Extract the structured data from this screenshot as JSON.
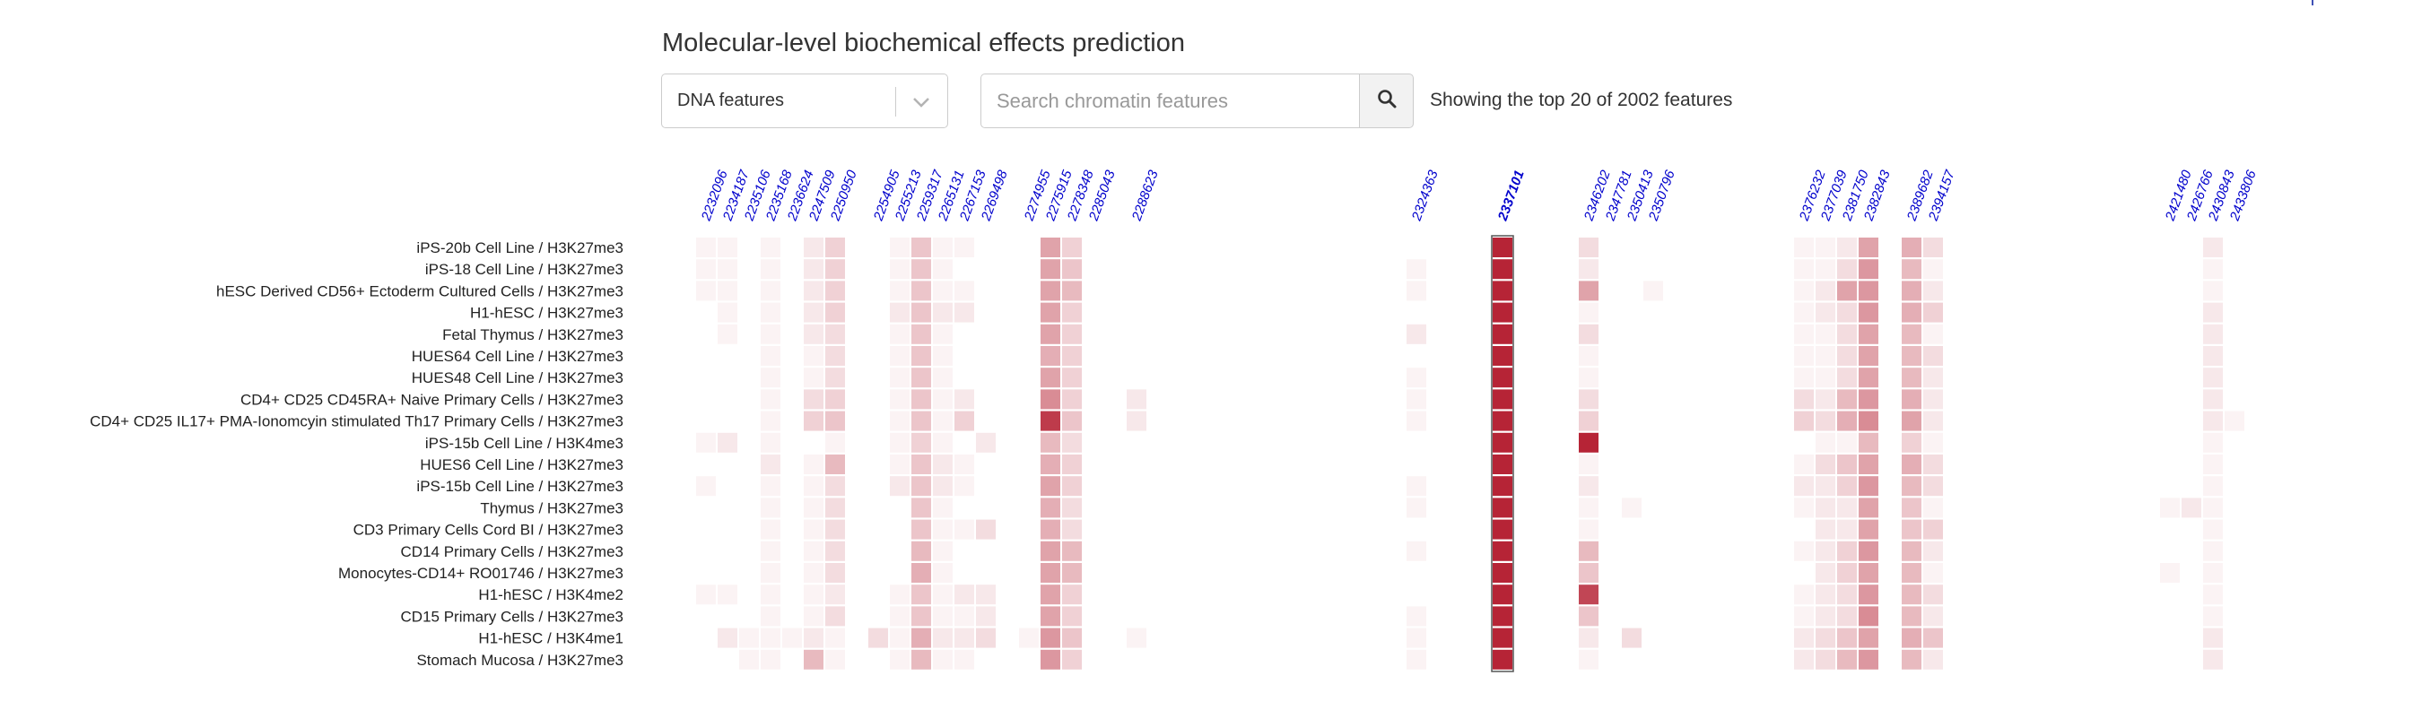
{
  "header": {
    "title": "Molecular-level biochemical effects prediction",
    "feature_select": {
      "selected": "DNA features"
    },
    "search": {
      "placeholder": "Search chromatin features"
    },
    "showing_text": "Showing the top 20 of 2002 features"
  },
  "colors": {
    "heat_low": "#ffffff",
    "heat_high": "#b2182b",
    "column_label": "#0000cc",
    "grid_line": "#e6e6e6"
  },
  "icons": {
    "dropdown": "chevron-down-icon",
    "search": "search-icon"
  },
  "chart_data": {
    "type": "heatmap",
    "title": "",
    "x_labels": [
      "2232096",
      "2234187",
      "2235106",
      "2235168",
      "2236624",
      "2247509",
      "2250950",
      "2254905",
      "2255213",
      "2259317",
      "2265131",
      "2267153",
      "2269498",
      "2274955",
      "2275915",
      "2278348",
      "2285043",
      "2288623",
      "2324363",
      "2337101",
      "2346202",
      "2347781",
      "2350413",
      "2350796",
      "2376232",
      "2377039",
      "2381750",
      "2382843",
      "2389682",
      "2394157",
      "2421480",
      "2426766",
      "2430843",
      "2433806"
    ],
    "highlighted_x": "2337101",
    "y_labels": [
      "iPS-20b Cell Line / H3K27me3",
      "iPS-18 Cell Line / H3K27me3",
      "hESC Derived CD56+ Ectoderm Cultured Cells / H3K27me3",
      "H1-hESC / H3K27me3",
      "Fetal Thymus / H3K27me3",
      "HUES64 Cell Line / H3K27me3",
      "HUES48 Cell Line / H3K27me3",
      "CD4+ CD25 CD45RA+ Naive Primary Cells / H3K27me3",
      "CD4+ CD25 IL17+ PMA-Ionomcyin stimulated Th17 Primary Cells / H3K27me3",
      "iPS-15b Cell Line / H3K4me3",
      "HUES6 Cell Line / H3K27me3",
      "iPS-15b Cell Line / H3K27me3",
      "Thymus / H3K27me3",
      "CD3 Primary Cells Cord BI / H3K27me3",
      "CD14 Primary Cells / H3K27me3",
      "Monocytes-CD14+ RO01746 / H3K27me3",
      "H1-hESC / H3K4me2",
      "CD15 Primary Cells / H3K27me3",
      "H1-hESC / H3K4me1",
      "Stomach Mucosa / H3K27me3"
    ],
    "values": [
      [
        0.05,
        0.05,
        0.0,
        0.05,
        0.0,
        0.1,
        0.2,
        0.0,
        0.05,
        0.25,
        0.05,
        0.05,
        0.0,
        0.0,
        0.4,
        0.2,
        0.0,
        0.0,
        0.0,
        0.95,
        0.15,
        0.0,
        0.0,
        0.0,
        0.05,
        0.05,
        0.1,
        0.4,
        0.35,
        0.15,
        0.0,
        0.0,
        0.1,
        0.0
      ],
      [
        0.05,
        0.05,
        0.0,
        0.05,
        0.0,
        0.1,
        0.2,
        0.0,
        0.05,
        0.25,
        0.05,
        0.0,
        0.0,
        0.0,
        0.4,
        0.25,
        0.0,
        0.0,
        0.05,
        0.95,
        0.1,
        0.0,
        0.0,
        0.0,
        0.05,
        0.05,
        0.15,
        0.45,
        0.3,
        0.05,
        0.0,
        0.0,
        0.05,
        0.0
      ],
      [
        0.05,
        0.05,
        0.0,
        0.05,
        0.0,
        0.1,
        0.2,
        0.0,
        0.05,
        0.25,
        0.05,
        0.05,
        0.0,
        0.0,
        0.4,
        0.3,
        0.0,
        0.0,
        0.05,
        0.95,
        0.4,
        0.0,
        0.0,
        0.05,
        0.05,
        0.1,
        0.4,
        0.45,
        0.35,
        0.1,
        0.0,
        0.0,
        0.05,
        0.0
      ],
      [
        0.0,
        0.05,
        0.0,
        0.05,
        0.0,
        0.1,
        0.2,
        0.0,
        0.1,
        0.25,
        0.1,
        0.1,
        0.0,
        0.0,
        0.4,
        0.2,
        0.0,
        0.0,
        0.0,
        0.95,
        0.05,
        0.0,
        0.0,
        0.0,
        0.05,
        0.1,
        0.15,
        0.45,
        0.35,
        0.2,
        0.0,
        0.0,
        0.1,
        0.0
      ],
      [
        0.0,
        0.05,
        0.0,
        0.05,
        0.0,
        0.1,
        0.15,
        0.0,
        0.05,
        0.25,
        0.05,
        0.0,
        0.0,
        0.0,
        0.4,
        0.2,
        0.0,
        0.0,
        0.1,
        0.95,
        0.15,
        0.0,
        0.0,
        0.0,
        0.05,
        0.05,
        0.15,
        0.4,
        0.3,
        0.05,
        0.0,
        0.0,
        0.1,
        0.0
      ],
      [
        0.0,
        0.0,
        0.0,
        0.05,
        0.0,
        0.05,
        0.15,
        0.0,
        0.05,
        0.25,
        0.05,
        0.0,
        0.0,
        0.0,
        0.35,
        0.2,
        0.0,
        0.0,
        0.0,
        0.95,
        0.05,
        0.0,
        0.0,
        0.0,
        0.05,
        0.05,
        0.15,
        0.4,
        0.3,
        0.15,
        0.0,
        0.0,
        0.1,
        0.0
      ],
      [
        0.0,
        0.0,
        0.0,
        0.05,
        0.0,
        0.05,
        0.15,
        0.0,
        0.05,
        0.25,
        0.05,
        0.0,
        0.0,
        0.0,
        0.4,
        0.2,
        0.0,
        0.0,
        0.05,
        0.95,
        0.05,
        0.0,
        0.0,
        0.0,
        0.05,
        0.05,
        0.15,
        0.4,
        0.3,
        0.1,
        0.0,
        0.0,
        0.1,
        0.0
      ],
      [
        0.0,
        0.0,
        0.0,
        0.05,
        0.0,
        0.15,
        0.2,
        0.0,
        0.05,
        0.25,
        0.05,
        0.1,
        0.0,
        0.0,
        0.5,
        0.2,
        0.0,
        0.1,
        0.05,
        0.95,
        0.15,
        0.0,
        0.0,
        0.0,
        0.15,
        0.1,
        0.3,
        0.45,
        0.35,
        0.1,
        0.0,
        0.0,
        0.1,
        0.0
      ],
      [
        0.0,
        0.0,
        0.0,
        0.05,
        0.0,
        0.2,
        0.25,
        0.0,
        0.05,
        0.25,
        0.05,
        0.2,
        0.0,
        0.0,
        0.85,
        0.25,
        0.0,
        0.1,
        0.05,
        0.95,
        0.2,
        0.0,
        0.0,
        0.0,
        0.2,
        0.15,
        0.35,
        0.5,
        0.4,
        0.1,
        0.0,
        0.0,
        0.1,
        0.05
      ],
      [
        0.05,
        0.1,
        0.0,
        0.05,
        0.0,
        0.0,
        0.05,
        0.0,
        0.05,
        0.2,
        0.05,
        0.0,
        0.1,
        0.0,
        0.3,
        0.15,
        0.0,
        0.0,
        0.0,
        0.95,
        0.95,
        0.0,
        0.0,
        0.0,
        0.0,
        0.05,
        0.05,
        0.3,
        0.2,
        0.05,
        0.0,
        0.0,
        0.05,
        0.0
      ],
      [
        0.0,
        0.0,
        0.0,
        0.1,
        0.0,
        0.05,
        0.3,
        0.0,
        0.05,
        0.25,
        0.1,
        0.05,
        0.0,
        0.0,
        0.35,
        0.2,
        0.0,
        0.0,
        0.0,
        0.95,
        0.05,
        0.0,
        0.0,
        0.0,
        0.05,
        0.15,
        0.25,
        0.4,
        0.35,
        0.15,
        0.0,
        0.0,
        0.05,
        0.0
      ],
      [
        0.05,
        0.0,
        0.0,
        0.05,
        0.0,
        0.05,
        0.15,
        0.0,
        0.1,
        0.25,
        0.1,
        0.05,
        0.0,
        0.0,
        0.4,
        0.2,
        0.0,
        0.0,
        0.05,
        0.95,
        0.1,
        0.0,
        0.0,
        0.0,
        0.1,
        0.1,
        0.2,
        0.45,
        0.3,
        0.15,
        0.0,
        0.0,
        0.05,
        0.0
      ],
      [
        0.0,
        0.0,
        0.0,
        0.05,
        0.0,
        0.05,
        0.15,
        0.0,
        0.0,
        0.25,
        0.05,
        0.0,
        0.0,
        0.0,
        0.35,
        0.15,
        0.0,
        0.0,
        0.05,
        0.95,
        0.05,
        0.0,
        0.05,
        0.0,
        0.05,
        0.1,
        0.1,
        0.4,
        0.25,
        0.05,
        0.05,
        0.1,
        0.05,
        0.0
      ],
      [
        0.0,
        0.0,
        0.0,
        0.05,
        0.0,
        0.05,
        0.15,
        0.0,
        0.0,
        0.25,
        0.05,
        0.05,
        0.15,
        0.0,
        0.35,
        0.15,
        0.0,
        0.0,
        0.0,
        0.95,
        0.05,
        0.0,
        0.0,
        0.0,
        0.0,
        0.1,
        0.1,
        0.4,
        0.25,
        0.2,
        0.0,
        0.0,
        0.05,
        0.0
      ],
      [
        0.0,
        0.0,
        0.0,
        0.05,
        0.0,
        0.05,
        0.15,
        0.0,
        0.0,
        0.3,
        0.05,
        0.0,
        0.0,
        0.0,
        0.4,
        0.3,
        0.0,
        0.0,
        0.05,
        0.95,
        0.3,
        0.0,
        0.0,
        0.0,
        0.05,
        0.1,
        0.2,
        0.45,
        0.3,
        0.1,
        0.0,
        0.0,
        0.05,
        0.0
      ],
      [
        0.0,
        0.0,
        0.0,
        0.05,
        0.0,
        0.05,
        0.15,
        0.0,
        0.0,
        0.35,
        0.05,
        0.0,
        0.0,
        0.0,
        0.4,
        0.3,
        0.0,
        0.0,
        0.0,
        0.95,
        0.25,
        0.0,
        0.0,
        0.0,
        0.0,
        0.1,
        0.2,
        0.4,
        0.3,
        0.05,
        0.05,
        0.0,
        0.05,
        0.0
      ],
      [
        0.05,
        0.05,
        0.0,
        0.05,
        0.0,
        0.05,
        0.1,
        0.0,
        0.05,
        0.25,
        0.05,
        0.1,
        0.1,
        0.0,
        0.4,
        0.2,
        0.0,
        0.0,
        0.0,
        0.95,
        0.8,
        0.0,
        0.0,
        0.0,
        0.05,
        0.1,
        0.15,
        0.45,
        0.3,
        0.15,
        0.0,
        0.0,
        0.05,
        0.0
      ],
      [
        0.0,
        0.0,
        0.0,
        0.05,
        0.0,
        0.05,
        0.15,
        0.0,
        0.05,
        0.25,
        0.05,
        0.05,
        0.1,
        0.0,
        0.4,
        0.2,
        0.0,
        0.0,
        0.05,
        0.95,
        0.25,
        0.0,
        0.0,
        0.0,
        0.05,
        0.1,
        0.15,
        0.5,
        0.3,
        0.1,
        0.0,
        0.0,
        0.05,
        0.0
      ],
      [
        0.0,
        0.1,
        0.05,
        0.05,
        0.05,
        0.1,
        0.05,
        0.15,
        0.05,
        0.35,
        0.1,
        0.1,
        0.15,
        0.05,
        0.45,
        0.25,
        0.0,
        0.05,
        0.05,
        0.95,
        0.1,
        0.0,
        0.15,
        0.0,
        0.1,
        0.15,
        0.25,
        0.4,
        0.35,
        0.25,
        0.0,
        0.0,
        0.1,
        0.0
      ],
      [
        0.0,
        0.0,
        0.05,
        0.05,
        0.0,
        0.3,
        0.05,
        0.0,
        0.05,
        0.3,
        0.05,
        0.05,
        0.0,
        0.0,
        0.45,
        0.2,
        0.0,
        0.0,
        0.05,
        0.95,
        0.05,
        0.0,
        0.0,
        0.0,
        0.1,
        0.15,
        0.3,
        0.45,
        0.3,
        0.1,
        0.0,
        0.0,
        0.1,
        0.0
      ]
    ]
  }
}
